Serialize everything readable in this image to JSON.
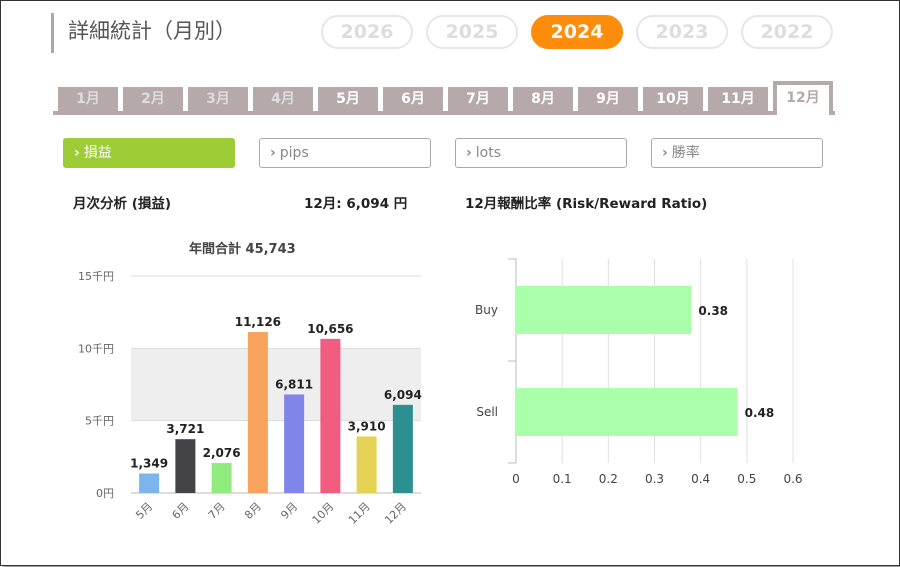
{
  "title": "詳細統計（月別）",
  "years": [
    {
      "label": "2026",
      "active": false
    },
    {
      "label": "2025",
      "active": false
    },
    {
      "label": "2024",
      "active": true
    },
    {
      "label": "2023",
      "active": false
    },
    {
      "label": "2022",
      "active": false
    }
  ],
  "months": [
    {
      "label": "1月",
      "state": "dim"
    },
    {
      "label": "2月",
      "state": "dim"
    },
    {
      "label": "3月",
      "state": "dim"
    },
    {
      "label": "4月",
      "state": "dim"
    },
    {
      "label": "5月",
      "state": "normal"
    },
    {
      "label": "6月",
      "state": "normal"
    },
    {
      "label": "7月",
      "state": "normal"
    },
    {
      "label": "8月",
      "state": "normal"
    },
    {
      "label": "9月",
      "state": "normal"
    },
    {
      "label": "10月",
      "state": "normal"
    },
    {
      "label": "11月",
      "state": "normal"
    },
    {
      "label": "12月",
      "state": "active"
    }
  ],
  "filters": [
    {
      "label": "損益",
      "active": true
    },
    {
      "label": "pips",
      "active": false
    },
    {
      "label": "lots",
      "active": false
    },
    {
      "label": "勝率",
      "active": false
    }
  ],
  "left_heading": "月次分析 (損益)",
  "month_summary": "12月:  6,094 円",
  "right_heading": "12月報酬比率 (Risk/Reward Ratio)",
  "annual_total": "年間合計 45,743",
  "colors": {
    "accent": "#ff8c0a",
    "filter_active": "#9dcc37",
    "tab": "#b5a9a9",
    "rr_bar": "#aaffaa"
  },
  "chart_data": [
    {
      "type": "bar",
      "categories": [
        "5月",
        "6月",
        "7月",
        "8月",
        "9月",
        "10月",
        "11月",
        "12月"
      ],
      "values": [
        1349,
        3721,
        2076,
        11126,
        6811,
        10656,
        3910,
        6094
      ],
      "value_labels": [
        "1,349",
        "3,721",
        "2,076",
        "11,126",
        "6,811",
        "10,656",
        "3,910",
        "6,094"
      ],
      "colors": [
        "#7cb5ec",
        "#434348",
        "#90ed7d",
        "#f7a35c",
        "#8085e9",
        "#f15c80",
        "#e4d354",
        "#2b908f"
      ],
      "ylim": [
        0,
        15000
      ],
      "yticks": [
        0,
        5000,
        10000,
        15000
      ],
      "ytick_labels": [
        "0円",
        "5千円",
        "10千円",
        "15千円"
      ],
      "grid": "alternating bands"
    },
    {
      "type": "bar",
      "orientation": "horizontal",
      "categories": [
        "Buy",
        "Sell"
      ],
      "values": [
        0.38,
        0.48
      ],
      "value_labels": [
        "0.38",
        "0.48"
      ],
      "xlim": [
        0,
        0.6
      ],
      "xticks": [
        0,
        0.1,
        0.2,
        0.3,
        0.4,
        0.5,
        0.6
      ],
      "xtick_labels": [
        "0",
        "0.1",
        "0.2",
        "0.3",
        "0.4",
        "0.5",
        "0.6"
      ],
      "grid": true
    }
  ]
}
